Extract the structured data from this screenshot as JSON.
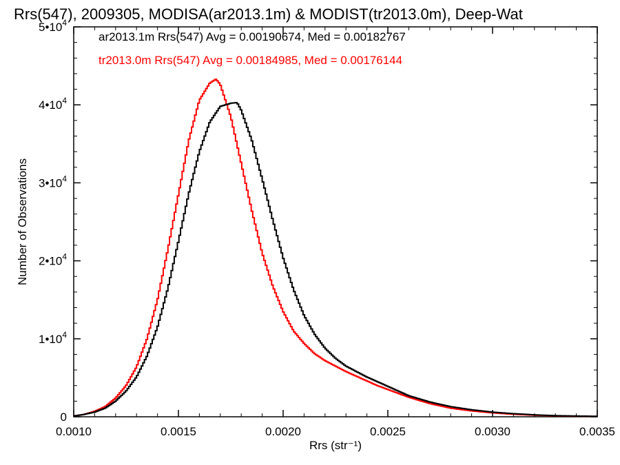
{
  "chart_data": {
    "type": "line",
    "title": "Rrs(547), 2009305, MODISA(ar2013.1m) & MODIST(tr2013.0m), Deep-Wat",
    "xlabel": "Rrs (str⁻¹)",
    "ylabel": "Number of Observations",
    "xlim": [
      0.001,
      0.0035
    ],
    "ylim": [
      0,
      50000
    ],
    "xticks": [
      0.001,
      0.0015,
      0.002,
      0.0025,
      0.003,
      0.0035
    ],
    "xtick_labels": [
      "0.0010",
      "0.0015",
      "0.0020",
      "0.0025",
      "0.0030",
      "0.0035"
    ],
    "yticks": [
      0,
      10000,
      20000,
      30000,
      40000,
      50000
    ],
    "ytick_labels": [
      {
        "mant": "0",
        "exp": ""
      },
      {
        "mant": "1•10",
        "exp": "4"
      },
      {
        "mant": "2•10",
        "exp": "4"
      },
      {
        "mant": "3•10",
        "exp": "4"
      },
      {
        "mant": "4•10",
        "exp": "4"
      },
      {
        "mant": "5•10",
        "exp": "4"
      }
    ],
    "grid": false,
    "legend_position": "top-left",
    "series": [
      {
        "name": "ar2013.1m Rrs(547) Avg = 0.00190674, Med = 0.00182767",
        "color": "#000000",
        "x": [
          0.001,
          0.00105,
          0.0011,
          0.00115,
          0.0012,
          0.00125,
          0.0013,
          0.00135,
          0.0014,
          0.00145,
          0.0015,
          0.00155,
          0.0016,
          0.00165,
          0.0017,
          0.00175,
          0.00178,
          0.0018,
          0.00185,
          0.0019,
          0.00195,
          0.002,
          0.00205,
          0.0021,
          0.00215,
          0.0022,
          0.00225,
          0.0023,
          0.00235,
          0.0024,
          0.00245,
          0.0025,
          0.00255,
          0.0026,
          0.0027,
          0.0028,
          0.0029,
          0.003,
          0.0031,
          0.0032,
          0.0033,
          0.0034,
          0.0035
        ],
        "y": [
          100,
          300,
          600,
          1100,
          2000,
          3300,
          5100,
          7800,
          11500,
          16500,
          22500,
          28700,
          34000,
          37800,
          39800,
          40200,
          40300,
          39300,
          35500,
          30500,
          25300,
          20400,
          16300,
          13000,
          10600,
          8800,
          7500,
          6500,
          5800,
          5100,
          4500,
          3900,
          3300,
          2700,
          1900,
          1300,
          900,
          600,
          400,
          250,
          150,
          100,
          60
        ]
      },
      {
        "name": "tr2013.0m Rrs(547) Avg = 0.00184985, Med = 0.00176144",
        "color": "#ff0000",
        "x": [
          0.001,
          0.00105,
          0.0011,
          0.00115,
          0.0012,
          0.00125,
          0.0013,
          0.00135,
          0.0014,
          0.00145,
          0.0015,
          0.00155,
          0.0016,
          0.00165,
          0.00168,
          0.0017,
          0.00175,
          0.0018,
          0.00185,
          0.0019,
          0.00195,
          0.002,
          0.00205,
          0.0021,
          0.00215,
          0.0022,
          0.00225,
          0.0023,
          0.00235,
          0.0024,
          0.00245,
          0.0025,
          0.00255,
          0.0026,
          0.0027,
          0.0028,
          0.0029,
          0.003,
          0.0031,
          0.0032,
          0.0033,
          0.0034,
          0.0035
        ],
        "y": [
          100,
          300,
          700,
          1300,
          2400,
          4000,
          6400,
          10000,
          15000,
          21500,
          28500,
          35500,
          40600,
          42800,
          43300,
          42600,
          38500,
          32500,
          26500,
          21000,
          16800,
          13500,
          11000,
          9400,
          8100,
          7200,
          6500,
          5800,
          5200,
          4600,
          4000,
          3500,
          3000,
          2500,
          1700,
          1100,
          750,
          500,
          320,
          200,
          120,
          80,
          50
        ]
      }
    ]
  }
}
